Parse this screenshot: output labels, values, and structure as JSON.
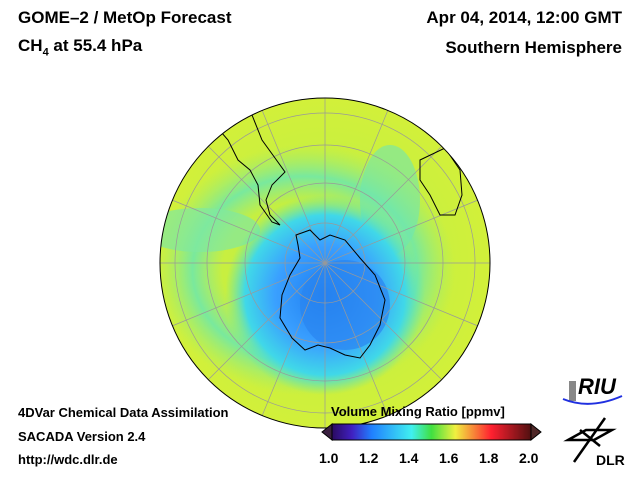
{
  "header": {
    "instrument": "GOME–2 / MetOp Forecast",
    "species_main": "CH",
    "species_sub": "4",
    "species_rest": " at 55.4 hPa",
    "datetime": "Apr 04, 2014, 12:00 GMT",
    "region": "Southern Hemisphere"
  },
  "footer": {
    "line1": "4DVar Chemical Data Assimilation",
    "line2": "SACADA Version 2.4",
    "url": "http://wdc.dlr.de"
  },
  "colorbar": {
    "title": "Volume Mixing Ratio [ppmv]",
    "ticks": [
      "1.0",
      "1.2",
      "1.4",
      "1.6",
      "1.8",
      "2.0"
    ],
    "range": [
      1.0,
      2.0
    ]
  },
  "logos": {
    "riu": "RIU",
    "dlr": "DLR"
  },
  "colors": {
    "background_field": "#c8f040",
    "low_field": "#3aa0ff",
    "coast": "#000000",
    "grid": "#9a9a9a"
  }
}
